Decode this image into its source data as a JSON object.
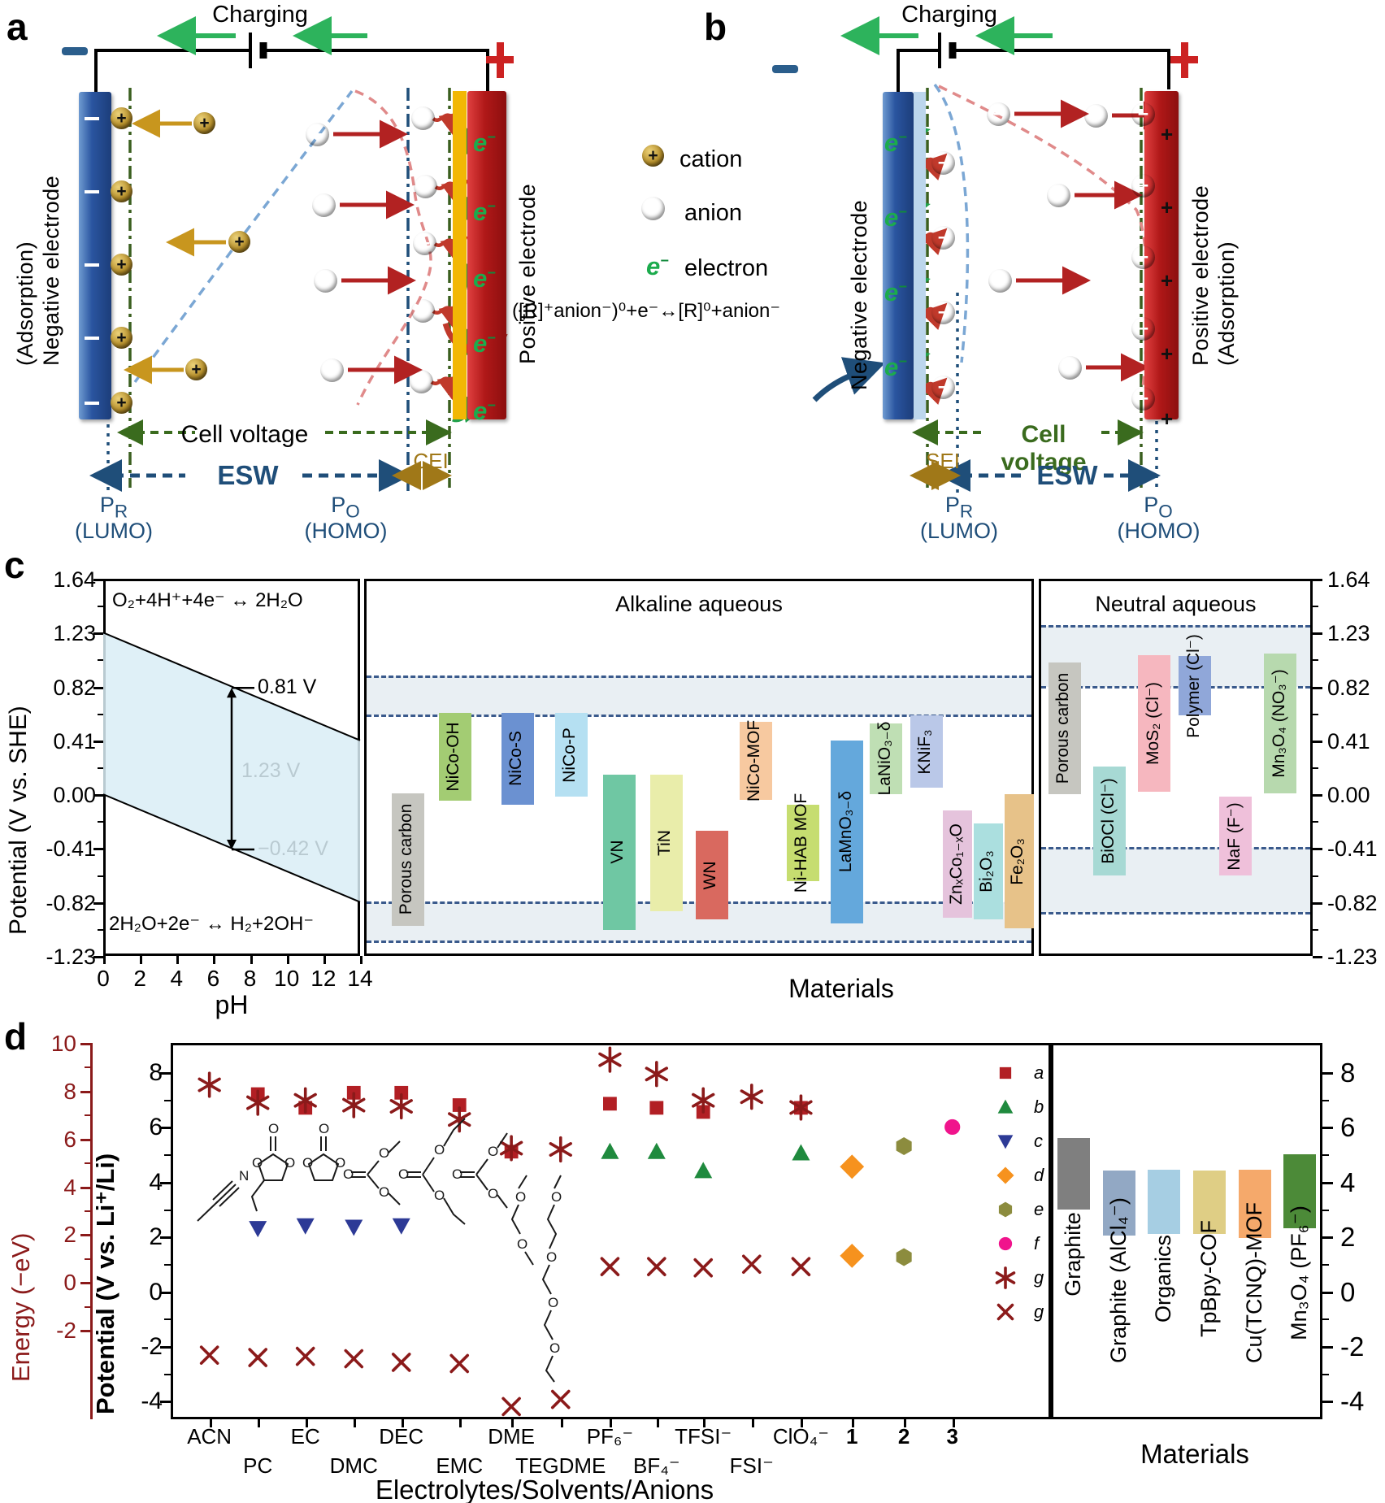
{
  "panel_a": {
    "letter": "a",
    "charging": "Charging",
    "minus": "−",
    "plus": "+",
    "neg_label_line1": "(Adsorption)",
    "neg_label_line2": "Negative electrode",
    "pos_label": "Positive electrode",
    "cell_voltage": "Cell voltage",
    "esw": "ESW",
    "cei": "CEI",
    "pr_html": "P<sub>R</sub>",
    "pr_paren": "(LUMO)",
    "po_html": "P<sub>O</sub>",
    "po_paren": "(HOMO)",
    "e_symbol_html": "e<sup>−</sup>"
  },
  "panel_b": {
    "letter": "b",
    "charging": "Charging",
    "minus": "−",
    "plus": "+",
    "neg_label": "Negative electrode",
    "pos_label_line1": "Positive electrode",
    "pos_label_line2": "(Adsorption)",
    "cell_voltage": "Cell voltage",
    "esw": "ESW",
    "sei": "SEI",
    "pr_html": "P<sub>R</sub>",
    "pr_paren": "(LUMO)",
    "po_html": "P<sub>O</sub>",
    "po_paren": "(HOMO)",
    "e_symbol_html": "e<sup>−</sup>"
  },
  "legend_ab": {
    "cation_sign": "+",
    "cation": "cation",
    "anion_sign": "−",
    "anion": "anion",
    "electron_symbol_html": "e<sup>−</sup>",
    "electron": "electron"
  },
  "equation_a": "([R]⁺anion⁻)⁰+e⁻↔[R]⁰+anion⁻",
  "chart_data": [
    {
      "id": "c",
      "type": "bar",
      "ylabel": "Potential (V vs. SHE)",
      "yticks": [
        1.64,
        1.23,
        0.82,
        0.41,
        0.0,
        -0.41,
        -0.82,
        -1.23
      ],
      "ylim": [
        1.64,
        -1.23
      ],
      "xlabel": "Materials",
      "ph_plot": {
        "xlabel": "pH",
        "xticks": [
          0,
          2,
          4,
          6,
          8,
          10,
          12,
          14
        ],
        "top_line": {
          "x": [
            0,
            14
          ],
          "y": [
            1.23,
            0.41
          ]
        },
        "bottom_line": {
          "x": [
            0,
            14
          ],
          "y": [
            0.0,
            -0.82
          ]
        },
        "top_eq": "O₂+4H⁺+4e⁻ ↔ 2H₂O",
        "bottom_eq": "2H₂O+2e⁻ ↔ H₂+2OH⁻",
        "ann_top": "0.81 V",
        "ann_bottom": "−0.42 V",
        "ann_mid": "1.23 V",
        "ann_ph": 7
      },
      "alkaline": {
        "title": "Alkaline aqueous",
        "dashed": [
          0.9,
          0.6,
          -0.82,
          -1.12
        ],
        "bands": [
          [
            0.9,
            0.6
          ],
          [
            -0.82,
            -1.12
          ]
        ],
        "bars": [
          {
            "label": "Porous carbon",
            "hi": 0.01,
            "lo": -1.0,
            "color": "#c6c6c0"
          },
          {
            "label": "NiCo-OH",
            "hi": 0.62,
            "lo": -0.05,
            "color": "#a3cc73"
          },
          {
            "label": "NiCo-S",
            "hi": 0.62,
            "lo": -0.08,
            "color": "#6b91d1"
          },
          {
            "label": "NiCo-P",
            "hi": 0.62,
            "lo": -0.02,
            "color": "#b5e0f2"
          },
          {
            "label": "VN",
            "hi": 0.15,
            "lo": -1.03,
            "color": "#6fc7a3"
          },
          {
            "label": "TiN",
            "hi": 0.15,
            "lo": -0.89,
            "color": "#e9edaa"
          },
          {
            "label": "WN",
            "hi": -0.28,
            "lo": -0.95,
            "color": "#d9695f"
          },
          {
            "label": "NiCo-MOF",
            "hi": 0.55,
            "lo": -0.04,
            "color": "#f7c9a0"
          },
          {
            "label": "Ni-HAB MOF",
            "hi": -0.08,
            "lo": -0.66,
            "color": "#c6dd70"
          },
          {
            "label": "LaMnO₃₋δ",
            "hi": 0.41,
            "lo": -0.98,
            "color": "#64a8dc"
          },
          {
            "label": "LaNiO₃₋δ",
            "hi": 0.54,
            "lo": 0.0,
            "color": "#bfdfb4"
          },
          {
            "label": "KNiF₃",
            "hi": 0.6,
            "lo": 0.05,
            "color": "#bac8e8"
          },
          {
            "label": "ZnₓCo₁₋ₓO",
            "hi": -0.12,
            "lo": -0.94,
            "color": "#e5c3dc"
          },
          {
            "label": "Bi₂O₃",
            "hi": -0.22,
            "lo": -0.95,
            "color": "#abdfdf"
          },
          {
            "label": "Fe₂O₃",
            "hi": 0.0,
            "lo": -1.02,
            "color": "#e7c289"
          }
        ]
      },
      "neutral": {
        "title": "Neutral aqueous",
        "dashed": [
          1.28,
          0.82,
          -0.41,
          -0.9
        ],
        "bands": [
          [
            1.28,
            0.82
          ],
          [
            -0.41,
            -0.9
          ]
        ],
        "bars": [
          {
            "label": "Porous carbon",
            "hi": 1.0,
            "lo": 0.0,
            "color": "#c6c6c0"
          },
          {
            "label": "BiOCl (Cl⁻)",
            "hi": 0.21,
            "lo": -0.62,
            "color": "#a7d9d4"
          },
          {
            "label": "MoS₂ (Cl⁻)",
            "hi": 1.06,
            "lo": 0.02,
            "color": "#f6b7bf"
          },
          {
            "label": "Polymer (Cl⁻)",
            "hi": 1.05,
            "lo": 0.6,
            "color": "#90a7d9"
          },
          {
            "label": "NaF (F⁻)",
            "hi": -0.02,
            "lo": -0.62,
            "color": "#efc0da"
          },
          {
            "label": "Mn₃O₄ (NO₃⁻)",
            "hi": 1.07,
            "lo": 0.01,
            "color": "#b7d9ae"
          }
        ]
      }
    },
    {
      "id": "d",
      "type": "scatter",
      "energy_axis": {
        "label": "Energy (−eV)",
        "ticks": [
          10,
          8,
          6,
          4,
          2,
          0,
          -2
        ],
        "lim": [
          10.0,
          -5.73
        ],
        "color": "#8b1a1a"
      },
      "potential_axis": {
        "label": "Potential (V vs. Li⁺/Li)",
        "ticks": [
          8,
          6,
          4,
          2,
          0,
          -2,
          -4
        ],
        "lim": [
          9.07,
          -4.67
        ]
      },
      "xlabel": "Electrolytes/Solvents/Anions",
      "categories": [
        {
          "label": "ACN",
          "row": 0
        },
        {
          "label": "PC",
          "row": 1
        },
        {
          "label": "EC",
          "row": 0
        },
        {
          "label": "DMC",
          "row": 1
        },
        {
          "label": "DEC",
          "row": 0
        },
        {
          "label": "EMC",
          "row": 1
        },
        {
          "label": "DME",
          "row": 0
        },
        {
          "label": "TEGDME",
          "row": 1
        },
        {
          "label": "PF₆⁻",
          "row": 0
        },
        {
          "label": "BF₄⁻",
          "row": 1
        },
        {
          "label": "TFSI⁻",
          "row": 0
        },
        {
          "label": "FSI⁻",
          "row": 1
        },
        {
          "label": "ClO₄⁻",
          "row": 0
        },
        {
          "label": "1",
          "row": 0,
          "bold": true
        },
        {
          "label": "2",
          "row": 0,
          "bold": true
        },
        {
          "label": "3",
          "row": 0,
          "bold": true
        }
      ],
      "series": [
        {
          "key": "a",
          "symbol": "square",
          "color": "#b21f24",
          "axis": "potential",
          "points": [
            [
              "PC",
              7.2
            ],
            [
              "EC",
              6.7
            ],
            [
              "DMC",
              7.25
            ],
            [
              "DEC",
              7.25
            ],
            [
              "EMC",
              6.8
            ],
            [
              "DME",
              5.1
            ],
            [
              "PF₆⁻",
              6.85
            ],
            [
              "BF₄⁻",
              6.7
            ],
            [
              "TFSI⁻",
              6.55
            ],
            [
              "ClO₄⁻",
              6.7
            ]
          ]
        },
        {
          "key": "b",
          "symbol": "triangle-up",
          "color": "#1f8a3e",
          "axis": "potential",
          "points": [
            [
              "PF₆⁻",
              5.1
            ],
            [
              "BF₄⁻",
              5.1
            ],
            [
              "TFSI⁻",
              4.4
            ],
            [
              "ClO₄⁻",
              5.05
            ]
          ]
        },
        {
          "key": "c",
          "symbol": "triangle-down",
          "color": "#2d3a96",
          "axis": "potential",
          "points": [
            [
              "PC",
              2.3
            ],
            [
              "EC",
              2.4
            ],
            [
              "DMC",
              2.35
            ],
            [
              "DEC",
              2.4
            ]
          ]
        },
        {
          "key": "d",
          "symbol": "diamond",
          "color": "#f6921e",
          "axis": "potential",
          "points": [
            [
              "1",
              4.55
            ],
            [
              "1",
              1.3
            ]
          ]
        },
        {
          "key": "e",
          "symbol": "hexagon",
          "color": "#8c8c3e",
          "axis": "potential",
          "points": [
            [
              "2",
              5.3
            ],
            [
              "2",
              1.25
            ]
          ]
        },
        {
          "key": "f",
          "symbol": "circle",
          "color": "#f0148c",
          "axis": "potential",
          "points": [
            [
              "3",
              6.0
            ]
          ]
        },
        {
          "key": "g",
          "symbol": "asterisk",
          "color": "#8b1a1a",
          "axis": "energy",
          "points": [
            [
              "ACN",
              8.25
            ],
            [
              "PC",
              7.5
            ],
            [
              "EC",
              7.6
            ],
            [
              "DMC",
              7.4
            ],
            [
              "DEC",
              7.35
            ],
            [
              "EMC",
              6.8
            ],
            [
              "DME",
              5.6
            ],
            [
              "TEGDME",
              5.55
            ],
            [
              "PF₆⁻",
              9.3
            ],
            [
              "BF₄⁻",
              8.7
            ],
            [
              "TFSI⁻",
              7.6
            ],
            [
              "FSI⁻",
              7.75
            ],
            [
              "ClO₄⁻",
              7.3
            ]
          ]
        },
        {
          "key": "g",
          "symbol": "cross",
          "color": "#8b1a1a",
          "axis": "energy",
          "points": [
            [
              "ACN",
              -3.05
            ],
            [
              "PC",
              -3.15
            ],
            [
              "EC",
              -3.1
            ],
            [
              "DMC",
              -3.2
            ],
            [
              "DEC",
              -3.35
            ],
            [
              "EMC",
              -3.4
            ],
            [
              "DME",
              -5.2
            ],
            [
              "TEGDME",
              -4.9
            ],
            [
              "PF₆⁻",
              0.65
            ],
            [
              "BF₄⁻",
              0.65
            ],
            [
              "TFSI⁻",
              0.6
            ],
            [
              "FSI⁻",
              0.75
            ],
            [
              "ClO₄⁻",
              0.65
            ]
          ]
        }
      ],
      "legend": [
        {
          "label": "a",
          "symbol": "square",
          "color": "#b21f24"
        },
        {
          "label": "b",
          "symbol": "triangle-up",
          "color": "#1f8a3e"
        },
        {
          "label": "c",
          "symbol": "triangle-down",
          "color": "#2d3a96"
        },
        {
          "label": "d",
          "symbol": "diamond",
          "color": "#f6921e"
        },
        {
          "label": "e",
          "symbol": "hexagon",
          "color": "#8c8c3e"
        },
        {
          "label": "f",
          "symbol": "circle",
          "color": "#f0148c"
        },
        {
          "label": "g",
          "symbol": "asterisk",
          "color": "#8b1a1a"
        },
        {
          "label": "g",
          "symbol": "cross",
          "color": "#8b1a1a"
        }
      ],
      "materials_panel": {
        "xlabel": "Materials",
        "ticks": [
          8,
          6,
          4,
          2,
          0,
          -2,
          -4
        ],
        "bars": [
          {
            "label": "Graphite",
            "hi": 5.6,
            "lo": 3.0,
            "color": "#7f7f7f"
          },
          {
            "label": "Graphite (AlCl₄⁻)",
            "hi": 4.4,
            "lo": 2.05,
            "color": "#92a8c4"
          },
          {
            "label": "Organics",
            "hi": 4.45,
            "lo": 2.1,
            "color": "#a6cee3"
          },
          {
            "label": "TpBpy-COF",
            "hi": 4.4,
            "lo": 2.1,
            "color": "#dfce85"
          },
          {
            "label": "Cu(TCNQ)-MOF",
            "hi": 4.45,
            "lo": 1.95,
            "color": "#f5a96b"
          },
          {
            "label": "Mn₃O₄ (PF₆⁻)",
            "hi": 5.0,
            "lo": 2.3,
            "color": "#4c8a38"
          }
        ]
      }
    }
  ]
}
